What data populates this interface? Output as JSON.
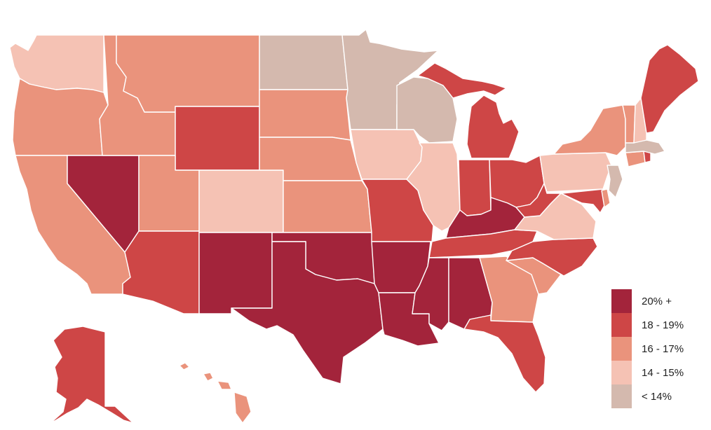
{
  "colors": {
    "c20": "#A3243B",
    "c18": "#CE4646",
    "c16": "#EA937C",
    "c14": "#F5C2B4",
    "c13": "#D4B9AE"
  },
  "legend": [
    {
      "label": "20% +",
      "key": "c20"
    },
    {
      "label": "18 - 19%",
      "key": "c18"
    },
    {
      "label": "16 - 17%",
      "key": "c16"
    },
    {
      "label": "14 - 15%",
      "key": "c14"
    },
    {
      "label": "< 14%",
      "key": "c13"
    }
  ],
  "states": {
    "WA": "c14",
    "OR": "c16",
    "CA": "c16",
    "NV": "c20",
    "ID": "c16",
    "MT": "c16",
    "WY": "c18",
    "UT": "c16",
    "AZ": "c18",
    "CO": "c14",
    "NM": "c20",
    "ND": "c13",
    "SD": "c16",
    "NE": "c16",
    "KS": "c16",
    "OK": "c20",
    "TX": "c20",
    "MN": "c13",
    "IA": "c14",
    "MO": "c18",
    "AR": "c20",
    "LA": "c20",
    "WI": "c13",
    "IL": "c14",
    "MI": "c18",
    "IN": "c18",
    "OH": "c18",
    "KY": "c20",
    "TN": "c18",
    "MS": "c20",
    "AL": "c20",
    "GA": "c16",
    "FL": "c18",
    "SC": "c16",
    "NC": "c18",
    "VA": "c14",
    "WV": "c18",
    "PA": "c14",
    "NY": "c16",
    "VT": "c16",
    "NH": "c14",
    "ME": "c18",
    "MA": "c13",
    "RI": "c18",
    "CT": "c16",
    "NJ": "c13",
    "DE": "c16",
    "MD": "c18",
    "AK": "c18",
    "HI": "c16"
  }
}
